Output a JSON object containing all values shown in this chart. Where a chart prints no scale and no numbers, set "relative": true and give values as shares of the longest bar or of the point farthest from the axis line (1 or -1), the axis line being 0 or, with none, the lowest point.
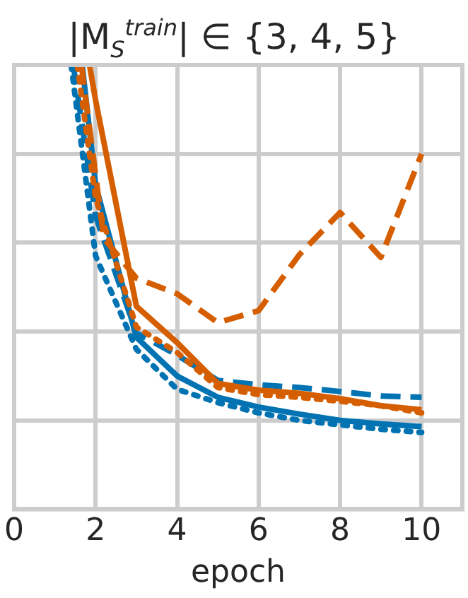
{
  "chart_data": {
    "type": "line",
    "title": "|M$_{S}$$^{train}$| ∈ {3, 4, 5}",
    "xlabel": "epoch",
    "relative": true,
    "xlim": [
      0,
      11
    ],
    "xticks": [
      0,
      2,
      4,
      6,
      8,
      10
    ],
    "grid": true,
    "legend": false,
    "marker": "none",
    "tick_labels": "x",
    "series": [
      {
        "color": "#d55e00",
        "line_style": "dashed",
        "x": [
          1.65,
          2.2,
          3,
          4,
          5,
          6,
          7,
          8,
          9,
          10
        ],
        "values": [
          1,
          0.61,
          0.52,
          0.485,
          0.42,
          0.447,
          0.573,
          0.668,
          0.567,
          0.8
        ]
      },
      {
        "color": "#d55e00",
        "line_style": "solid",
        "x": [
          1.85,
          2,
          3,
          4,
          5,
          6,
          7,
          8,
          9,
          10
        ],
        "values": [
          1,
          0.92,
          0.457,
          0.375,
          0.283,
          0.268,
          0.261,
          0.249,
          0.233,
          0.224
        ]
      },
      {
        "color": "#d55e00",
        "line_style": "dotted",
        "x": [
          1.55,
          2,
          3,
          4,
          5,
          6,
          7,
          8,
          9,
          10
        ],
        "values": [
          1,
          0.7,
          0.41,
          0.353,
          0.274,
          0.258,
          0.252,
          0.243,
          0.233,
          0.217
        ]
      },
      {
        "color": "#0173b2",
        "line_style": "solid",
        "x": [
          1.67,
          2,
          3,
          4,
          5,
          6,
          7,
          8,
          9,
          10
        ],
        "values": [
          1,
          0.73,
          0.387,
          0.3,
          0.252,
          0.23,
          0.214,
          0.2,
          0.192,
          0.186
        ]
      },
      {
        "color": "#0173b2",
        "line_style": "dashed",
        "x": [
          1.45,
          2,
          3,
          4,
          5,
          6,
          7,
          8,
          9,
          10
        ],
        "values": [
          1,
          0.66,
          0.397,
          0.347,
          0.29,
          0.28,
          0.274,
          0.265,
          0.255,
          0.252
        ]
      },
      {
        "color": "#0173b2",
        "line_style": "dotted",
        "x": [
          1.4,
          2,
          3,
          4,
          5,
          6,
          7,
          8,
          9,
          10
        ],
        "values": [
          1,
          0.57,
          0.36,
          0.27,
          0.24,
          0.217,
          0.2,
          0.19,
          0.18,
          0.173
        ]
      }
    ]
  }
}
